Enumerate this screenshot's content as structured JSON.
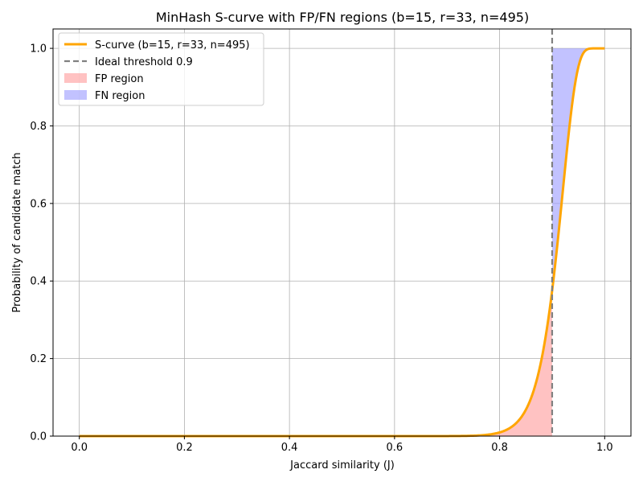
{
  "chart_data": {
    "type": "line",
    "title": "MinHash S-curve with FP/FN regions (b=15, r=33, n=495)",
    "xlabel": "Jaccard similarity (J)",
    "ylabel": "Probability of candidate match",
    "xlim": [
      -0.05,
      1.05
    ],
    "ylim": [
      0,
      1.05
    ],
    "xticks": [
      0.0,
      0.2,
      0.4,
      0.6,
      0.8,
      1.0
    ],
    "xtick_labels": [
      "0.0",
      "0.2",
      "0.4",
      "0.6",
      "0.8",
      "1.0"
    ],
    "yticks": [
      0.0,
      0.2,
      0.4,
      0.6,
      0.8,
      1.0
    ],
    "ytick_labels": [
      "0.0",
      "0.2",
      "0.4",
      "0.6",
      "0.8",
      "1.0"
    ],
    "grid": true,
    "legend_position": "top-left",
    "params": {
      "b": 15,
      "r": 33
    },
    "threshold": 0.9,
    "series": [
      {
        "name": "S-curve (b=15, r=33, n=495)",
        "kind": "line",
        "color": "#ffa500",
        "formula": "1 - (1 - x^r)^b",
        "x": [
          0.0,
          0.2,
          0.4,
          0.6,
          0.7,
          0.75,
          0.8,
          0.82,
          0.84,
          0.86,
          0.88,
          0.9,
          0.92,
          0.94,
          0.96,
          0.98,
          1.0
        ],
        "y": [
          0.0,
          0.0,
          0.0,
          0.0,
          0.0,
          0.0,
          0.006,
          0.02,
          0.047,
          0.101,
          0.204,
          0.381,
          0.633,
          0.866,
          0.981,
          0.999,
          1.0
        ]
      },
      {
        "name": "Ideal threshold 0.9",
        "kind": "vline",
        "color": "#808080",
        "x_value": 0.9
      },
      {
        "name": "FP region",
        "kind": "fill",
        "color": "#ff9999",
        "x_range": [
          0.0,
          0.9
        ],
        "between": [
          "0",
          "curve"
        ]
      },
      {
        "name": "FN region",
        "kind": "fill",
        "color": "#9999ff",
        "x_range": [
          0.9,
          1.0
        ],
        "between": [
          "curve",
          "1"
        ]
      }
    ]
  }
}
